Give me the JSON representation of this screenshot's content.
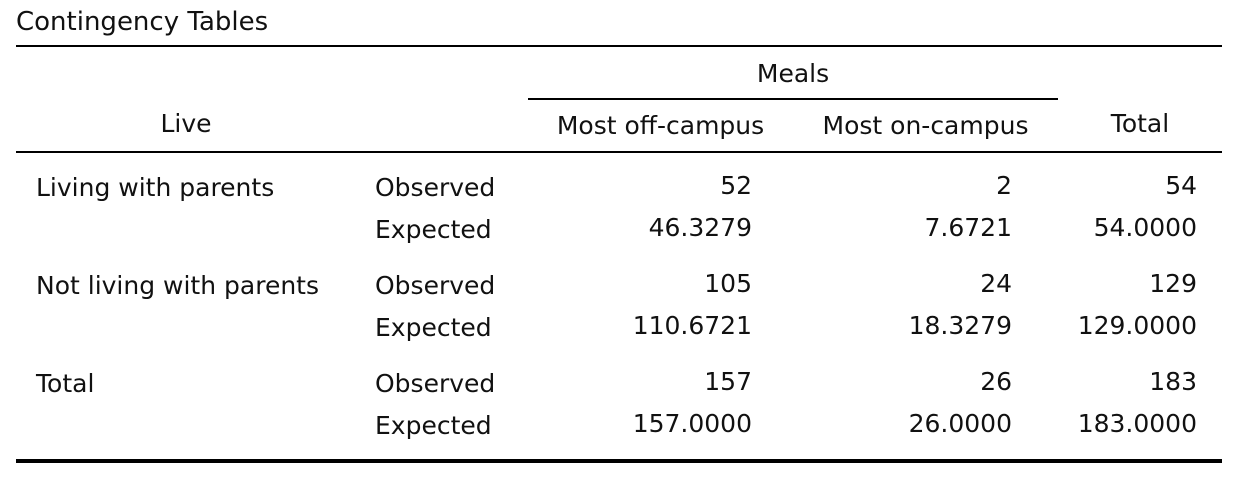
{
  "title": "Contingency Tables",
  "header": {
    "row_var": "Live",
    "col_var": "Meals",
    "columns": [
      "Most off-campus",
      "Most on-campus"
    ],
    "total": "Total"
  },
  "rows": [
    {
      "label": "Living with parents",
      "stats": [
        {
          "name": "Observed",
          "values": [
            "52",
            "2",
            "54"
          ]
        },
        {
          "name": "Expected",
          "values": [
            "46.3279",
            "7.6721",
            "54.0000"
          ]
        }
      ]
    },
    {
      "label": "Not living with parents",
      "stats": [
        {
          "name": "Observed",
          "values": [
            "105",
            "24",
            "129"
          ]
        },
        {
          "name": "Expected",
          "values": [
            "110.6721",
            "18.3279",
            "129.0000"
          ]
        }
      ]
    },
    {
      "label": "Total",
      "stats": [
        {
          "name": "Observed",
          "values": [
            "157",
            "26",
            "183"
          ]
        },
        {
          "name": "Expected",
          "values": [
            "157.0000",
            "26.0000",
            "183.0000"
          ]
        }
      ]
    }
  ]
}
